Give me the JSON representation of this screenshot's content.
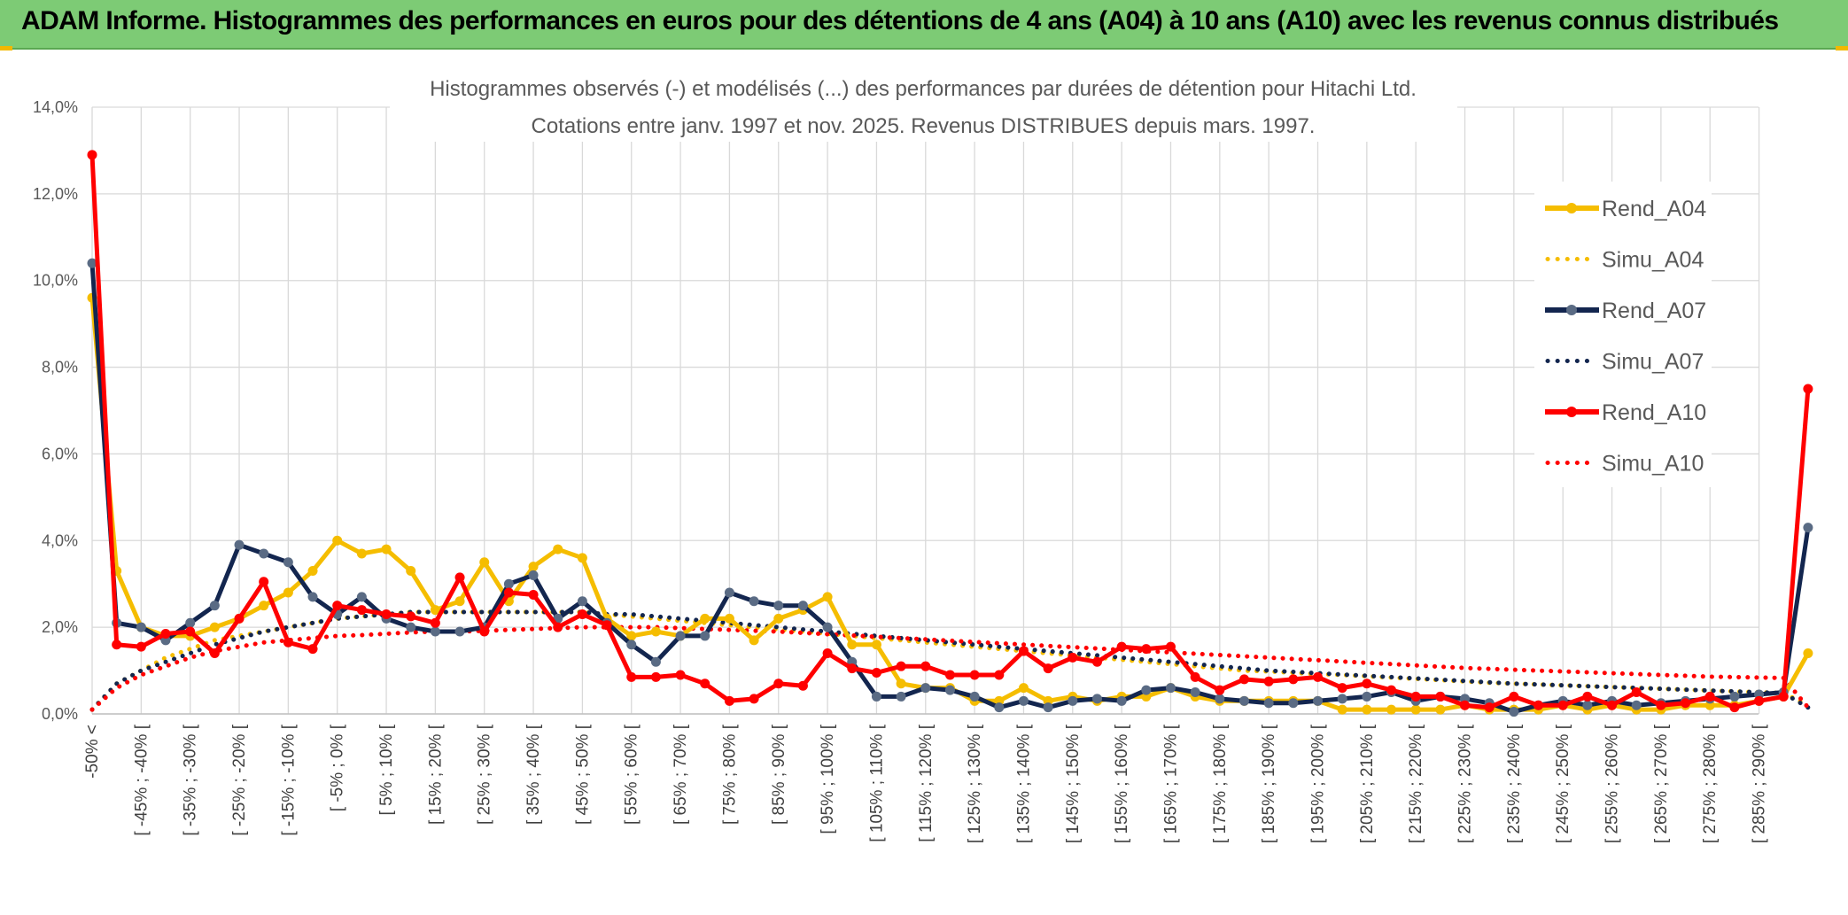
{
  "banner": {
    "title": "ADAM Informe. Histogrammes des performances en euros pour des détentions de 4 ans (A04) à 10 ans (A10) avec les revenus connus distribués"
  },
  "chart_data": {
    "type": "line",
    "title": "Histogrammes observés (-) et modélisés (...) des performances par durées de détention pour Hitachi Ltd.",
    "subtitle": "Cotations entre janv. 1997 et nov. 2025. Revenus DISTRIBUES depuis mars. 1997.",
    "ylim": [
      0,
      14
    ],
    "y_ticks": [
      "0,0%",
      "2,0%",
      "4,0%",
      "6,0%",
      "8,0%",
      "10,0%",
      "12,0%",
      "14,0%"
    ],
    "x_tick_labels": [
      "-50% <",
      "[ -45% ; -40% [",
      "[ -35% ; -30% [",
      "[ -25% ; -20% [",
      "[ -15% ; -10% [",
      "[ -5% ; 0% [",
      "[ 5% ; 10% [",
      "[ 15% ; 20% [",
      "[ 25% ; 30% [",
      "[ 35% ; 40% [",
      "[ 45% ; 50% [",
      "[ 55% ; 60% [",
      "[ 65% ; 70% [",
      "[ 75% ; 80% [",
      "[ 85% ; 90% [",
      "[ 95% ; 100% [",
      "[ 105% ; 110% [",
      "[ 115% ; 120% [",
      "[ 125% ; 130% [",
      "[ 135% ; 140% [",
      "[ 145% ; 150% [",
      "[ 155% ; 160% [",
      "[ 165% ; 170% [",
      "[ 175% ; 180% [",
      "[ 185% ; 190% [",
      "[ 195% ; 200% [",
      "[ 205% ; 210% [",
      "[ 215% ; 220% [",
      "[ 225% ; 230% [",
      "[ 235% ; 240% [",
      "[ 245% ; 250% [",
      "[ 255% ; 260% [",
      "[ 265% ; 270% [",
      "[ 275% ; 280% [",
      "[ 285% ; 290% ["
    ],
    "n_points": 71,
    "legend_position": "right",
    "series": [
      {
        "name": "Rend_A04",
        "style": "solid",
        "color": "#f5bd00",
        "markers": true,
        "values": [
          9.6,
          3.3,
          2.0,
          1.8,
          1.8,
          2.0,
          2.2,
          2.5,
          2.8,
          3.3,
          4.0,
          3.7,
          3.8,
          3.3,
          2.4,
          2.6,
          3.5,
          2.6,
          3.4,
          3.8,
          3.6,
          2.2,
          1.8,
          1.9,
          1.8,
          2.2,
          2.2,
          1.7,
          2.2,
          2.4,
          2.7,
          1.6,
          1.6,
          0.7,
          0.6,
          0.6,
          0.3,
          0.3,
          0.6,
          0.3,
          0.4,
          0.3,
          0.4,
          0.4,
          0.6,
          0.4,
          0.3,
          0.3,
          0.3,
          0.3,
          0.3,
          0.1,
          0.1,
          0.1,
          0.1,
          0.1,
          0.2,
          0.1,
          0.1,
          0.1,
          0.2,
          0.1,
          0.2,
          0.1,
          0.1,
          0.2,
          0.2,
          0.2,
          0.3,
          0.4,
          1.4
        ]
      },
      {
        "name": "Simu_A04",
        "style": "dotted",
        "color": "#f5bd00",
        "markers": false,
        "values": [
          0.1,
          0.7,
          1.0,
          1.3,
          1.5,
          1.7,
          1.8,
          1.9,
          2.0,
          2.1,
          2.2,
          2.25,
          2.3,
          2.35,
          2.35,
          2.35,
          2.35,
          2.35,
          2.35,
          2.35,
          2.35,
          2.3,
          2.25,
          2.2,
          2.15,
          2.1,
          2.05,
          2.0,
          1.95,
          1.9,
          1.85,
          1.8,
          1.75,
          1.7,
          1.65,
          1.6,
          1.55,
          1.5,
          1.45,
          1.4,
          1.35,
          1.3,
          1.25,
          1.2,
          1.15,
          1.1,
          1.05,
          1.0,
          0.98,
          0.95,
          0.92,
          0.9,
          0.87,
          0.84,
          0.81,
          0.78,
          0.75,
          0.72,
          0.7,
          0.68,
          0.66,
          0.64,
          0.62,
          0.6,
          0.58,
          0.56,
          0.54,
          0.52,
          0.5,
          0.48,
          0.2
        ]
      },
      {
        "name": "Rend_A07",
        "style": "solid",
        "color": "#13264f",
        "markers": true,
        "values": [
          10.4,
          2.1,
          2.0,
          1.7,
          2.1,
          2.5,
          3.9,
          3.7,
          3.5,
          2.7,
          2.3,
          2.7,
          2.2,
          2.0,
          1.9,
          1.9,
          2.0,
          3.0,
          3.2,
          2.2,
          2.6,
          2.1,
          1.6,
          1.2,
          1.8,
          1.8,
          2.8,
          2.6,
          2.5,
          2.5,
          2.0,
          1.2,
          0.4,
          0.4,
          0.6,
          0.55,
          0.4,
          0.15,
          0.3,
          0.15,
          0.3,
          0.35,
          0.3,
          0.55,
          0.6,
          0.5,
          0.35,
          0.3,
          0.25,
          0.25,
          0.3,
          0.35,
          0.4,
          0.5,
          0.3,
          0.4,
          0.35,
          0.25,
          0.05,
          0.2,
          0.3,
          0.2,
          0.3,
          0.2,
          0.25,
          0.3,
          0.35,
          0.4,
          0.45,
          0.5,
          4.3
        ]
      },
      {
        "name": "Simu_A07",
        "style": "dotted",
        "color": "#13264f",
        "markers": false,
        "values": [
          0.1,
          0.7,
          1.0,
          1.2,
          1.4,
          1.6,
          1.75,
          1.9,
          2.0,
          2.1,
          2.2,
          2.25,
          2.3,
          2.35,
          2.35,
          2.35,
          2.35,
          2.35,
          2.35,
          2.35,
          2.35,
          2.3,
          2.3,
          2.25,
          2.2,
          2.15,
          2.1,
          2.05,
          2.0,
          1.95,
          1.9,
          1.85,
          1.8,
          1.75,
          1.7,
          1.65,
          1.6,
          1.55,
          1.5,
          1.45,
          1.4,
          1.35,
          1.3,
          1.25,
          1.2,
          1.15,
          1.1,
          1.05,
          1.0,
          0.97,
          0.94,
          0.91,
          0.88,
          0.85,
          0.82,
          0.79,
          0.76,
          0.73,
          0.7,
          0.68,
          0.66,
          0.64,
          0.62,
          0.6,
          0.58,
          0.56,
          0.54,
          0.52,
          0.5,
          0.48,
          0.15
        ]
      },
      {
        "name": "Rend_A10",
        "style": "solid",
        "color": "#ff0000",
        "markers": true,
        "values": [
          12.9,
          1.6,
          1.55,
          1.85,
          1.9,
          1.4,
          2.2,
          3.05,
          1.65,
          1.5,
          2.5,
          2.4,
          2.3,
          2.25,
          2.1,
          3.15,
          1.9,
          2.8,
          2.75,
          2.0,
          2.3,
          2.05,
          0.85,
          0.85,
          0.9,
          0.7,
          0.3,
          0.35,
          0.7,
          0.65,
          1.4,
          1.05,
          0.95,
          1.1,
          1.1,
          0.9,
          0.9,
          0.9,
          1.45,
          1.05,
          1.3,
          1.2,
          1.55,
          1.5,
          1.55,
          0.85,
          0.55,
          0.8,
          0.75,
          0.8,
          0.85,
          0.6,
          0.7,
          0.55,
          0.4,
          0.4,
          0.2,
          0.15,
          0.4,
          0.2,
          0.2,
          0.4,
          0.2,
          0.5,
          0.2,
          0.25,
          0.4,
          0.15,
          0.3,
          0.4,
          7.5
        ]
      },
      {
        "name": "Simu_A10",
        "style": "dotted",
        "color": "#ff0000",
        "markers": false,
        "values": [
          0.1,
          0.6,
          0.9,
          1.1,
          1.3,
          1.45,
          1.55,
          1.65,
          1.7,
          1.75,
          1.8,
          1.82,
          1.85,
          1.88,
          1.9,
          1.9,
          1.92,
          1.94,
          1.96,
          1.98,
          2.0,
          2.0,
          2.0,
          2.0,
          1.98,
          1.96,
          1.94,
          1.92,
          1.9,
          1.87,
          1.84,
          1.81,
          1.78,
          1.75,
          1.72,
          1.69,
          1.66,
          1.63,
          1.6,
          1.57,
          1.54,
          1.51,
          1.48,
          1.45,
          1.42,
          1.39,
          1.36,
          1.33,
          1.3,
          1.27,
          1.24,
          1.21,
          1.18,
          1.15,
          1.12,
          1.09,
          1.06,
          1.04,
          1.02,
          1.0,
          0.98,
          0.96,
          0.94,
          0.92,
          0.9,
          0.88,
          0.86,
          0.85,
          0.84,
          0.83,
          0.15
        ]
      }
    ]
  }
}
